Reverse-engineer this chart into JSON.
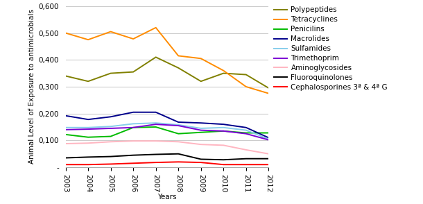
{
  "years": [
    2003,
    2004,
    2005,
    2006,
    2007,
    2008,
    2009,
    2010,
    2011,
    2012
  ],
  "series": [
    {
      "label": "Polypeptides",
      "color": "#808000",
      "linestyle": "solid",
      "values": [
        0.34,
        0.32,
        0.35,
        0.355,
        0.41,
        0.37,
        0.32,
        0.35,
        0.345,
        0.295
      ]
    },
    {
      "label": "Tetracyclines",
      "color": "#FF8C00",
      "linestyle": "solid",
      "values": [
        0.5,
        0.475,
        0.505,
        0.478,
        0.52,
        0.415,
        0.405,
        0.36,
        0.3,
        0.275
      ]
    },
    {
      "label": "Penicilins",
      "color": "#00BB00",
      "linestyle": "solid",
      "values": [
        0.122,
        0.112,
        0.115,
        0.148,
        0.15,
        0.125,
        0.13,
        0.135,
        0.128,
        0.128
      ]
    },
    {
      "label": "Macrolides",
      "color": "#00008B",
      "linestyle": "solid",
      "values": [
        0.192,
        0.178,
        0.188,
        0.205,
        0.205,
        0.168,
        0.165,
        0.16,
        0.148,
        0.11
      ]
    },
    {
      "label": "Sulfamides",
      "color": "#87CEEB",
      "linestyle": "solid",
      "values": [
        0.148,
        0.148,
        0.152,
        0.162,
        0.165,
        0.158,
        0.145,
        0.148,
        0.138,
        0.105
      ]
    },
    {
      "label": "Trimethoprim",
      "color": "#7B00D4",
      "linestyle": "solid",
      "values": [
        0.14,
        0.142,
        0.145,
        0.148,
        0.16,
        0.155,
        0.138,
        0.135,
        0.125,
        0.102
      ]
    },
    {
      "label": "Aminoglycosides",
      "color": "#FFB6C1",
      "linestyle": "solid",
      "values": [
        0.088,
        0.09,
        0.095,
        0.098,
        0.098,
        0.095,
        0.085,
        0.082,
        0.065,
        0.05
      ]
    },
    {
      "label": "Fluoroquinolones",
      "color": "#000000",
      "linestyle": "solid",
      "values": [
        0.035,
        0.038,
        0.04,
        0.045,
        0.048,
        0.05,
        0.03,
        0.028,
        0.032,
        0.032
      ]
    },
    {
      "label": "Cephalosporines 3ª & 4ª G",
      "color": "#FF0000",
      "linestyle": "solid",
      "values": [
        0.01,
        0.01,
        0.012,
        0.015,
        0.018,
        0.02,
        0.018,
        0.01,
        0.01,
        0.01
      ]
    }
  ],
  "ylabel": "Animal Level of Exposure to antimicrobials",
  "xlabel": "Years",
  "ylim": [
    0,
    0.6
  ],
  "yticks": [
    0,
    0.1,
    0.2,
    0.3,
    0.4,
    0.5,
    0.6
  ],
  "ytick_labels": [
    "-",
    "0,100",
    "0,200",
    "0,300",
    "0,400",
    "0,500",
    "0,600"
  ],
  "background_color": "#ffffff",
  "grid_color": "#cccccc",
  "figsize": [
    6.1,
    2.94
  ],
  "dpi": 100
}
